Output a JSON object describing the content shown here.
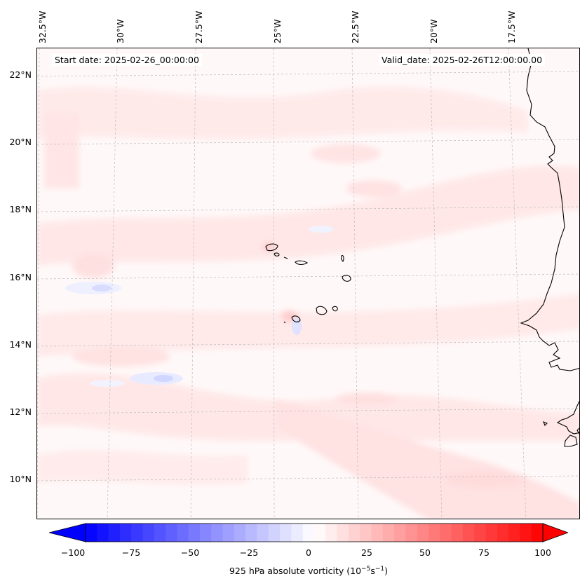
{
  "map": {
    "start_date": "Start date: 2025-02-26_00:00:00",
    "valid_date": "Valid_date: 2025-02-26T12:00:00.00",
    "lon_labels": [
      "32.5°W",
      "30°W",
      "27.5°W",
      "25°W",
      "22.5°W",
      "20°W",
      "17.5°W"
    ],
    "lat_labels": [
      "22°N",
      "20°N",
      "18°N",
      "16°N",
      "14°N",
      "12°N",
      "10°N"
    ],
    "colors": {
      "neg_max": "#0000ff",
      "pos_max": "#ff0000",
      "background": "#fff8f8",
      "coastline": "#000000"
    }
  },
  "colorbar": {
    "ticks": [
      "−100",
      "−75",
      "−50",
      "−25",
      "0",
      "25",
      "50",
      "75",
      "100"
    ],
    "label_main": "925 hPa absolute vorticity (10",
    "label_exp1": "−5",
    "label_mid": "s",
    "label_exp2": "−1",
    "label_end": ")",
    "min": -100,
    "max": 100
  }
}
